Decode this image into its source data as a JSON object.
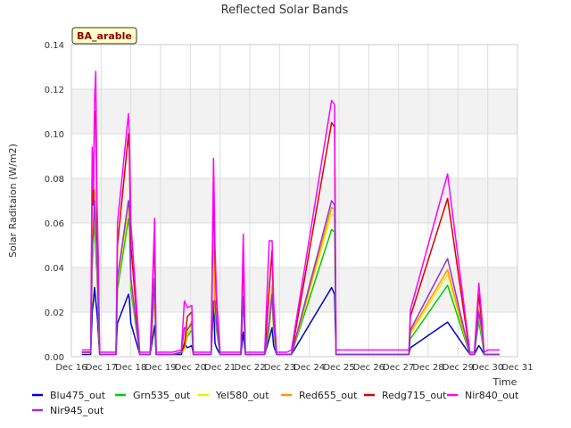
{
  "chart_data": {
    "type": "line",
    "title": "Reflected Solar Bands",
    "xlabel": "Time",
    "ylabel": "Solar Raditaion (W/m2)",
    "badge": "BA_arable",
    "xlim": [
      16,
      31
    ],
    "ylim": [
      0,
      0.14
    ],
    "x_ticks": [
      16,
      17,
      18,
      19,
      20,
      21,
      22,
      23,
      24,
      25,
      26,
      27,
      28,
      29,
      30,
      31
    ],
    "x_tick_labels": [
      "Dec 16",
      "Dec 17",
      "Dec 18",
      "Dec 19",
      "Dec 20",
      "Dec 21",
      "Dec 22",
      "Dec 23",
      "Dec 24",
      "Dec 25",
      "Dec 26",
      "Dec 27",
      "Dec 28",
      "Dec 29",
      "Dec 30",
      "Dec 31"
    ],
    "y_ticks": [
      0,
      0.02,
      0.04,
      0.06,
      0.08,
      0.1,
      0.12,
      0.14
    ],
    "y_tick_labels": [
      "0.00",
      "0.02",
      "0.04",
      "0.06",
      "0.08",
      "0.10",
      "0.12",
      "0.14"
    ],
    "legend_placement": "bottom",
    "series": [
      {
        "name": "Blu475_out",
        "color": "#0000cc",
        "x": [
          16.35,
          16.65,
          16.7,
          16.74,
          16.78,
          16.82,
          16.86,
          16.9,
          16.95,
          17.05,
          17.08,
          17.5,
          17.55,
          17.92,
          17.95,
          18.0,
          18.3,
          18.65,
          18.8,
          18.85,
          19.4,
          19.7,
          19.8,
          19.9,
          20.05,
          20.1,
          20.5,
          20.7,
          20.78,
          20.83,
          20.88,
          21.0,
          21.3,
          21.55,
          21.7,
          21.78,
          21.85,
          22.3,
          22.5,
          22.65,
          22.75,
          22.8,
          22.9,
          23.25,
          23.4,
          24.75,
          24.85,
          24.9,
          27.35,
          27.4,
          28.65,
          29.4,
          29.55,
          29.7,
          29.8,
          29.88,
          30.0,
          30.4
        ],
        "y": [
          0.001,
          0.001,
          0.02,
          0.025,
          0.031,
          0.025,
          0.02,
          0.012,
          0.001,
          0.001,
          0.001,
          0.001,
          0.015,
          0.028,
          0.026,
          0.015,
          0.001,
          0.001,
          0.014,
          0.001,
          0.001,
          0.001,
          0.006,
          0.004,
          0.005,
          0.001,
          0.001,
          0.001,
          0.024,
          0.006,
          0.004,
          0.001,
          0.001,
          0.001,
          0.001,
          0.011,
          0.001,
          0.001,
          0.001,
          0.008,
          0.013,
          0.005,
          0.001,
          0.001,
          0.001,
          0.031,
          0.028,
          0.001,
          0.001,
          0.004,
          0.0155,
          0.001,
          0.001,
          0.005,
          0.003,
          0.001,
          0.001,
          0.001
        ]
      },
      {
        "name": "Grn535_out",
        "color": "#00cc00",
        "x": [
          16.35,
          16.65,
          16.7,
          16.74,
          16.78,
          16.82,
          16.86,
          16.9,
          16.95,
          17.05,
          17.08,
          17.5,
          17.55,
          17.92,
          17.95,
          18.0,
          18.3,
          18.65,
          18.8,
          18.85,
          19.4,
          19.7,
          19.8,
          19.9,
          20.05,
          20.1,
          20.5,
          20.7,
          20.78,
          20.83,
          20.88,
          21.0,
          21.3,
          21.55,
          21.7,
          21.78,
          21.85,
          22.3,
          22.5,
          22.65,
          22.75,
          22.8,
          22.9,
          23.25,
          23.4,
          24.75,
          24.85,
          24.9,
          27.35,
          27.4,
          28.65,
          29.4,
          29.55,
          29.7,
          29.8,
          29.88,
          30.0,
          30.4
        ],
        "y": [
          0.002,
          0.002,
          0.04,
          0.05,
          0.064,
          0.045,
          0.038,
          0.02,
          0.001,
          0.001,
          0.001,
          0.001,
          0.03,
          0.062,
          0.058,
          0.03,
          0.001,
          0.001,
          0.028,
          0.001,
          0.001,
          0.002,
          0.003,
          0.009,
          0.012,
          0.001,
          0.001,
          0.001,
          0.068,
          0.019,
          0.012,
          0.001,
          0.001,
          0.001,
          0.001,
          0.038,
          0.001,
          0.001,
          0.001,
          0.012,
          0.028,
          0.01,
          0.001,
          0.001,
          0.001,
          0.057,
          0.056,
          0.001,
          0.001,
          0.008,
          0.032,
          0.001,
          0.001,
          0.016,
          0.008,
          0.001,
          0.001,
          0.001
        ]
      },
      {
        "name": "Yel580_out",
        "color": "#eeee00",
        "x": [
          16.35,
          16.65,
          16.7,
          16.74,
          16.78,
          16.82,
          16.86,
          16.9,
          16.95,
          17.05,
          17.08,
          17.5,
          17.55,
          17.92,
          17.95,
          18.0,
          18.3,
          18.65,
          18.8,
          18.85,
          19.4,
          19.7,
          19.8,
          19.9,
          20.05,
          20.1,
          20.5,
          20.7,
          20.78,
          20.83,
          20.88,
          21.0,
          21.3,
          21.55,
          21.7,
          21.78,
          21.85,
          22.3,
          22.5,
          22.65,
          22.75,
          22.8,
          22.9,
          23.25,
          23.4,
          24.75,
          24.85,
          24.9,
          27.35,
          27.4,
          28.65,
          29.4,
          29.55,
          29.7,
          29.8,
          29.88,
          30.0,
          30.4
        ],
        "y": [
          0.002,
          0.002,
          0.045,
          0.055,
          0.07,
          0.05,
          0.042,
          0.022,
          0.001,
          0.001,
          0.001,
          0.001,
          0.033,
          0.066,
          0.062,
          0.033,
          0.001,
          0.001,
          0.03,
          0.001,
          0.001,
          0.002,
          0.003,
          0.01,
          0.014,
          0.001,
          0.001,
          0.001,
          0.072,
          0.021,
          0.014,
          0.001,
          0.001,
          0.001,
          0.001,
          0.041,
          0.001,
          0.001,
          0.001,
          0.014,
          0.03,
          0.012,
          0.001,
          0.001,
          0.001,
          0.064,
          0.063,
          0.001,
          0.001,
          0.01,
          0.037,
          0.001,
          0.001,
          0.019,
          0.01,
          0.001,
          0.001,
          0.001
        ]
      },
      {
        "name": "Red655_out",
        "color": "#ff9900",
        "x": [
          16.35,
          16.65,
          16.7,
          16.74,
          16.78,
          16.82,
          16.86,
          16.9,
          16.95,
          17.05,
          17.08,
          17.5,
          17.55,
          17.92,
          17.95,
          18.0,
          18.3,
          18.65,
          18.8,
          18.85,
          19.4,
          19.7,
          19.8,
          19.9,
          20.05,
          20.1,
          20.5,
          20.7,
          20.78,
          20.83,
          20.88,
          21.0,
          21.3,
          21.55,
          21.7,
          21.78,
          21.85,
          22.3,
          22.5,
          22.65,
          22.75,
          22.8,
          22.9,
          23.25,
          23.4,
          24.75,
          24.85,
          24.9,
          27.35,
          27.4,
          28.65,
          29.4,
          29.55,
          29.7,
          29.8,
          29.88,
          30.0,
          30.4
        ],
        "y": [
          0.002,
          0.002,
          0.05,
          0.06,
          0.075,
          0.055,
          0.046,
          0.024,
          0.001,
          0.001,
          0.001,
          0.001,
          0.035,
          0.07,
          0.066,
          0.035,
          0.001,
          0.001,
          0.032,
          0.001,
          0.001,
          0.002,
          0.004,
          0.012,
          0.016,
          0.001,
          0.001,
          0.001,
          0.076,
          0.023,
          0.016,
          0.001,
          0.001,
          0.001,
          0.001,
          0.044,
          0.001,
          0.001,
          0.001,
          0.015,
          0.032,
          0.013,
          0.001,
          0.001,
          0.001,
          0.067,
          0.066,
          0.001,
          0.001,
          0.011,
          0.039,
          0.001,
          0.001,
          0.021,
          0.011,
          0.001,
          0.001,
          0.001
        ]
      },
      {
        "name": "Redg715_out",
        "color": "#dd0000",
        "x": [
          16.35,
          16.65,
          16.7,
          16.74,
          16.78,
          16.82,
          16.86,
          16.9,
          16.95,
          17.05,
          17.08,
          17.5,
          17.55,
          17.92,
          17.95,
          18.0,
          18.3,
          18.65,
          18.8,
          18.85,
          19.4,
          19.7,
          19.8,
          19.9,
          20.05,
          20.1,
          20.5,
          20.7,
          20.78,
          20.83,
          20.88,
          21.0,
          21.3,
          21.55,
          21.7,
          21.78,
          21.85,
          22.3,
          22.5,
          22.65,
          22.75,
          22.8,
          22.9,
          23.25,
          23.4,
          24.75,
          24.85,
          24.9,
          27.35,
          27.4,
          28.65,
          29.4,
          29.55,
          29.7,
          29.8,
          29.88,
          30.0,
          30.4
        ],
        "y": [
          0.002,
          0.002,
          0.078,
          0.068,
          0.108,
          0.11,
          0.062,
          0.04,
          0.001,
          0.001,
          0.001,
          0.001,
          0.05,
          0.1,
          0.09,
          0.05,
          0.001,
          0.001,
          0.055,
          0.001,
          0.001,
          0.002,
          0.005,
          0.018,
          0.02,
          0.001,
          0.001,
          0.001,
          0.082,
          0.043,
          0.025,
          0.001,
          0.001,
          0.001,
          0.001,
          0.05,
          0.001,
          0.001,
          0.001,
          0.03,
          0.048,
          0.02,
          0.001,
          0.001,
          0.001,
          0.105,
          0.103,
          0.001,
          0.001,
          0.018,
          0.071,
          0.001,
          0.001,
          0.028,
          0.015,
          0.001,
          0.001,
          0.001
        ]
      },
      {
        "name": "Nir840_out",
        "color": "#ff00ff",
        "x": [
          16.35,
          16.65,
          16.7,
          16.74,
          16.78,
          16.82,
          16.86,
          16.9,
          16.95,
          17.05,
          17.08,
          17.5,
          17.55,
          17.92,
          17.95,
          18.0,
          18.3,
          18.65,
          18.8,
          18.85,
          19.4,
          19.7,
          19.8,
          19.9,
          20.05,
          20.1,
          20.5,
          20.7,
          20.78,
          20.83,
          20.88,
          21.0,
          21.3,
          21.55,
          21.7,
          21.78,
          21.85,
          22.3,
          22.5,
          22.65,
          22.75,
          22.8,
          22.9,
          23.25,
          23.4,
          24.75,
          24.85,
          24.9,
          27.35,
          27.4,
          28.65,
          29.4,
          29.55,
          29.7,
          29.8,
          29.88,
          30.0,
          30.4
        ],
        "y": [
          0.003,
          0.003,
          0.094,
          0.075,
          0.115,
          0.128,
          0.07,
          0.048,
          0.002,
          0.002,
          0.002,
          0.002,
          0.06,
          0.109,
          0.1,
          0.06,
          0.002,
          0.002,
          0.062,
          0.002,
          0.002,
          0.003,
          0.025,
          0.022,
          0.023,
          0.002,
          0.002,
          0.002,
          0.089,
          0.049,
          0.028,
          0.002,
          0.002,
          0.002,
          0.002,
          0.055,
          0.002,
          0.002,
          0.002,
          0.052,
          0.052,
          0.025,
          0.002,
          0.002,
          0.003,
          0.115,
          0.113,
          0.003,
          0.003,
          0.021,
          0.082,
          0.002,
          0.002,
          0.033,
          0.018,
          0.002,
          0.003,
          0.003
        ]
      },
      {
        "name": "Nir945_out",
        "color": "#9933cc",
        "x": [
          16.35,
          16.65,
          16.7,
          16.74,
          16.78,
          16.82,
          16.86,
          16.9,
          16.95,
          17.05,
          17.08,
          17.5,
          17.55,
          17.92,
          17.95,
          18.0,
          18.3,
          18.65,
          18.8,
          18.85,
          19.4,
          19.7,
          19.8,
          19.9,
          20.05,
          20.1,
          20.5,
          20.7,
          20.78,
          20.83,
          20.88,
          21.0,
          21.3,
          21.55,
          21.7,
          21.78,
          21.85,
          22.3,
          22.5,
          22.65,
          22.75,
          22.8,
          22.9,
          23.25,
          23.4,
          24.75,
          24.85,
          24.9,
          27.35,
          27.4,
          28.65,
          29.4,
          29.55,
          29.7,
          29.8,
          29.88,
          30.0,
          30.4
        ],
        "y": [
          0.002,
          0.002,
          0.05,
          0.055,
          0.07,
          0.058,
          0.045,
          0.025,
          0.001,
          0.001,
          0.001,
          0.001,
          0.035,
          0.07,
          0.066,
          0.035,
          0.001,
          0.001,
          0.035,
          0.001,
          0.001,
          0.002,
          0.013,
          0.012,
          0.015,
          0.001,
          0.001,
          0.001,
          0.025,
          0.025,
          0.015,
          0.001,
          0.001,
          0.001,
          0.001,
          0.027,
          0.001,
          0.001,
          0.001,
          0.016,
          0.028,
          0.015,
          0.001,
          0.001,
          0.001,
          0.07,
          0.068,
          0.001,
          0.001,
          0.012,
          0.044,
          0.001,
          0.001,
          0.02,
          0.012,
          0.001,
          0.001,
          0.001
        ]
      }
    ]
  }
}
